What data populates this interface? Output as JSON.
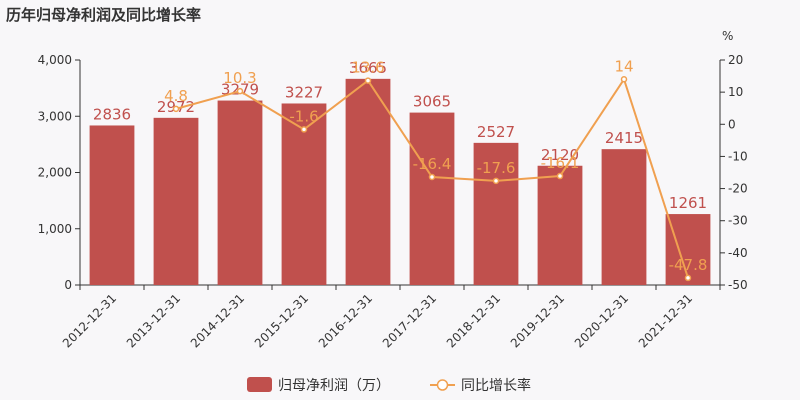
{
  "title": "历年归母净利润及同比增长率",
  "chart_data": {
    "type": "bar",
    "categories": [
      "2012-12-31",
      "2013-12-31",
      "2014-12-31",
      "2015-12-31",
      "2016-12-31",
      "2017-12-31",
      "2018-12-31",
      "2019-12-31",
      "2020-12-31",
      "2021-12-31"
    ],
    "series": [
      {
        "name": "归母净利润（万）",
        "type": "bar",
        "axis": "left",
        "color": "#c0504d",
        "values": [
          2836,
          2972,
          3279,
          3227,
          3665,
          3065,
          2527,
          2120,
          2415,
          1261
        ],
        "labels": [
          "2836",
          "2972",
          "3279",
          "3227",
          "3665",
          "3065",
          "2527",
          "2120",
          "2415",
          "1261"
        ]
      },
      {
        "name": "同比增长率",
        "type": "line",
        "axis": "right",
        "color": "#f0a050",
        "values": [
          null,
          4.8,
          10.3,
          -1.6,
          13.6,
          -16.4,
          -17.6,
          -16.1,
          14,
          -47.8
        ],
        "labels": [
          "",
          "4.8",
          "10.3",
          "-1.6",
          "13.6",
          "-16.4",
          "-17.6",
          "-16.1",
          "14",
          "-47.8"
        ]
      }
    ],
    "y_left": {
      "min": 0,
      "max": 4000,
      "ticks": [
        0,
        1000,
        2000,
        3000,
        4000
      ],
      "tick_labels": [
        "0",
        "1,000",
        "2,000",
        "3,000",
        "4,000"
      ]
    },
    "y_right": {
      "min": -50,
      "max": 20,
      "ticks": [
        -50,
        -40,
        -30,
        -20,
        -10,
        0,
        10,
        20
      ],
      "tick_labels": [
        "-50",
        "-40",
        "-30",
        "-20",
        "-10",
        "0",
        "10",
        "20"
      ],
      "unit": "%"
    },
    "grid": false,
    "legend_position": "bottom"
  }
}
